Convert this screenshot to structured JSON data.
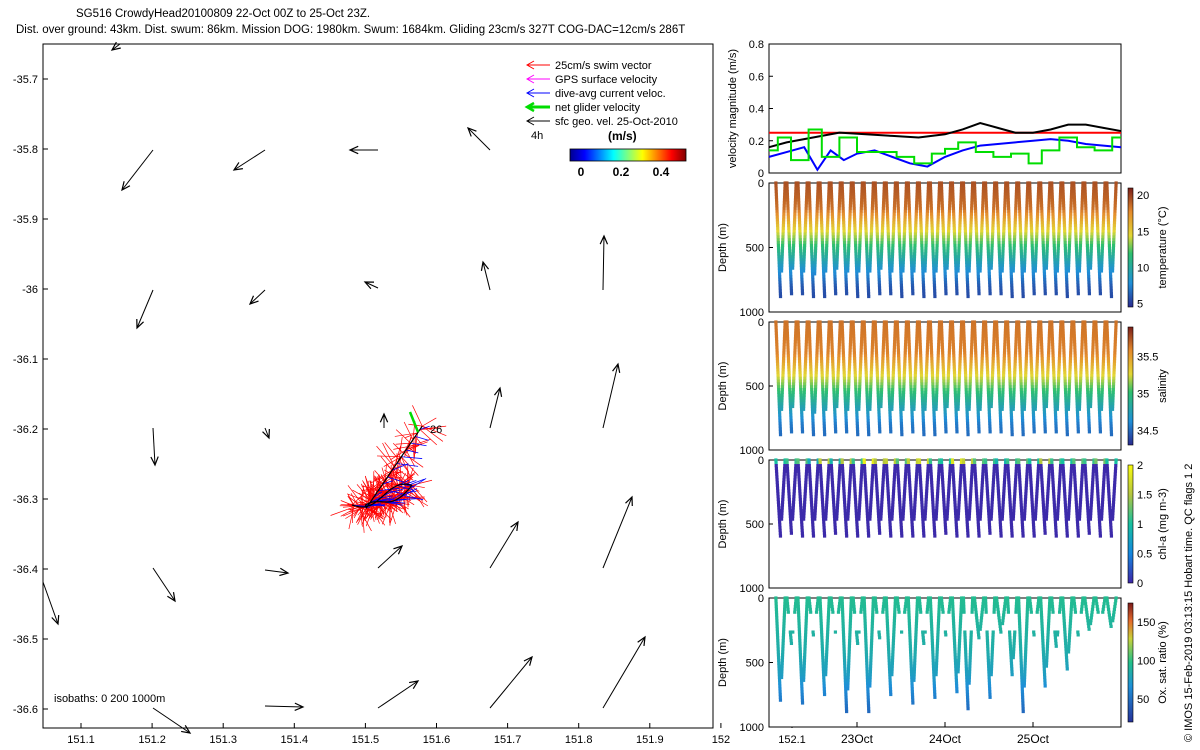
{
  "header": {
    "line1": "SG516 CrowdyHead20100809 22-Oct 00Z to 25-Oct 23Z.",
    "line2": "Dist. over ground: 43km. Dist. swum: 86km. Mission DOG: 1980km. Swum: 1684km. Gliding 23cm/s 327T COG-DAC=12cm/s 286T"
  },
  "map": {
    "lon_ticks": [
      "151.1",
      "151.2",
      "151.3",
      "151.4",
      "151.5",
      "151.6",
      "151.7",
      "151.8",
      "151.9",
      "152",
      "152.1"
    ],
    "lat_ticks": [
      "-35.7",
      "-35.8",
      "-35.9",
      "-36",
      "-36.1",
      "-36.2",
      "-36.3",
      "-36.4",
      "-36.5",
      "-36.6"
    ],
    "legend": [
      {
        "label": "25cm/s swim vector",
        "color": "#ff0000"
      },
      {
        "label": "GPS surface velocity",
        "color": "#ff00ff"
      },
      {
        "label": "dive-avg current veloc.",
        "color": "#0000ff"
      },
      {
        "label": "net glider velocity",
        "color": "#00dd00"
      },
      {
        "label": "sfc geo. vel. 25-Oct-2010",
        "color": "#000000"
      }
    ],
    "time_step_label": "4h",
    "colorbar_title": "(m/s)",
    "colorbar_ticks": [
      "0",
      "0.2",
      "0.4"
    ],
    "track_label": "26",
    "isobaths_label": "isobaths: 0   200   1000m"
  },
  "chart_data": [
    {
      "type": "line",
      "title": "",
      "xlabel": "",
      "ylabel": "velocity magnitude (m/s)",
      "ylim": [
        0,
        0.8
      ],
      "y_ticks": [
        "0",
        "0.2",
        "0.4",
        "0.6",
        "0.8"
      ],
      "x_range_days": [
        22.0,
        26.0
      ],
      "series": [
        {
          "name": "",
          "color": "#ff0000",
          "x": [
            22.0,
            26.0
          ],
          "values": [
            0.25,
            0.25
          ]
        },
        {
          "name": "",
          "color": "#000000",
          "x": [
            22.0,
            22.2,
            22.5,
            22.8,
            23.1,
            23.4,
            23.7,
            24.0,
            24.2,
            24.4,
            24.6,
            24.8,
            25.0,
            25.2,
            25.4,
            25.6,
            25.8,
            26.0
          ],
          "values": [
            0.16,
            0.19,
            0.22,
            0.25,
            0.24,
            0.23,
            0.22,
            0.24,
            0.27,
            0.31,
            0.28,
            0.25,
            0.25,
            0.27,
            0.3,
            0.3,
            0.28,
            0.26
          ]
        },
        {
          "name": "",
          "color": "#0000ff",
          "x": [
            22.0,
            22.2,
            22.4,
            22.55,
            22.7,
            22.85,
            23.0,
            23.2,
            23.4,
            23.6,
            23.8,
            24.0,
            24.2,
            24.4,
            24.6,
            24.8,
            25.0,
            25.2,
            25.4,
            25.6,
            25.8,
            26.0
          ],
          "values": [
            0.1,
            0.13,
            0.16,
            0.02,
            0.14,
            0.08,
            0.12,
            0.14,
            0.1,
            0.06,
            0.04,
            0.1,
            0.14,
            0.17,
            0.18,
            0.19,
            0.2,
            0.21,
            0.2,
            0.18,
            0.17,
            0.16
          ]
        },
        {
          "name": "",
          "color": "#00dd00",
          "step": true,
          "x": [
            22.0,
            22.1,
            22.25,
            22.45,
            22.6,
            22.8,
            23.0,
            23.2,
            23.45,
            23.65,
            23.85,
            24.0,
            24.15,
            24.35,
            24.55,
            24.75,
            24.95,
            25.1,
            25.3,
            25.5,
            25.7,
            25.9,
            26.0
          ],
          "values": [
            0.14,
            0.22,
            0.08,
            0.27,
            0.1,
            0.22,
            0.13,
            0.13,
            0.1,
            0.06,
            0.12,
            0.15,
            0.19,
            0.13,
            0.1,
            0.12,
            0.06,
            0.14,
            0.22,
            0.16,
            0.14,
            0.22,
            0.22
          ]
        }
      ]
    },
    {
      "type": "scatter",
      "title": "",
      "xlabel": "",
      "ylabel": "Depth (m)",
      "colorbar_label": "temperature (°C)",
      "colorbar_ticks": [
        "5",
        "10",
        "15",
        "20"
      ],
      "clim": [
        4.5,
        21
      ],
      "ylim": [
        1000,
        0
      ],
      "y_ticks": [
        "0",
        "500",
        "1000"
      ],
      "dives": 31,
      "max_depth_m": [
        880,
        860,
        870,
        900,
        880,
        860,
        870,
        880,
        890,
        860,
        870,
        880,
        870,
        880,
        890,
        860,
        870,
        880,
        870,
        860,
        870,
        880,
        890,
        870,
        860,
        870,
        880,
        870,
        860,
        870,
        880
      ],
      "profile_values": {
        "depth_m": [
          0,
          200,
          350,
          500,
          650,
          800,
          1000
        ],
        "values": [
          19.5,
          18.5,
          15,
          11.5,
          8.5,
          6,
          5
        ]
      }
    },
    {
      "type": "scatter",
      "title": "",
      "xlabel": "",
      "ylabel": "Depth (m)",
      "colorbar_label": "salinity",
      "colorbar_ticks": [
        "34.5",
        "35",
        "35.5"
      ],
      "clim": [
        34.3,
        35.9
      ],
      "ylim": [
        1000,
        0
      ],
      "y_ticks": [
        "0",
        "500",
        "1000"
      ],
      "dives": 31,
      "max_depth_m": [
        880,
        860,
        870,
        900,
        880,
        860,
        870,
        880,
        890,
        860,
        870,
        880,
        870,
        880,
        890,
        860,
        870,
        880,
        870,
        860,
        870,
        880,
        890,
        870,
        860,
        870,
        880,
        870,
        860,
        870,
        880
      ],
      "profile_values": {
        "depth_m": [
          0,
          250,
          400,
          520,
          650,
          800,
          1000
        ],
        "values": [
          35.65,
          35.6,
          35.3,
          35.05,
          34.8,
          34.55,
          34.45
        ]
      }
    },
    {
      "type": "scatter",
      "title": "",
      "xlabel": "",
      "ylabel": "Depth (m)",
      "colorbar_label": "chl-a (mg m-3)",
      "colorbar_ticks": [
        "0",
        "0.5",
        "1",
        "1.5",
        "2"
      ],
      "clim": [
        0,
        2
      ],
      "ylim": [
        1000,
        0
      ],
      "y_ticks": [
        "0",
        "500",
        "1000"
      ],
      "dives": 31,
      "max_depth_m": [
        600,
        590,
        600,
        610,
        600,
        590,
        600,
        600,
        610,
        590,
        600,
        600,
        600,
        600,
        610,
        590,
        600,
        600,
        600,
        590,
        600,
        600,
        610,
        600,
        590,
        600,
        600,
        600,
        590,
        600,
        600
      ],
      "surface_values": [
        1.0,
        1.1,
        1.2,
        0.8,
        1.6,
        0.9,
        1.5,
        1.1,
        1.9,
        1.5,
        1.6,
        1.2,
        1.6,
        1.7,
        1.1,
        1.0,
        1.8,
        1.6,
        1.2,
        1.1,
        0.9,
        1.1,
        1.2,
        1.0,
        1.5,
        1.1,
        1.0,
        1.2,
        1.1,
        1.3,
        1.0
      ]
    },
    {
      "type": "scatter",
      "title": "",
      "xlabel": "",
      "ylabel": "Depth (m)",
      "colorbar_label": "Ox. sat. ratio (%)",
      "colorbar_ticks": [
        "50",
        "100",
        "150"
      ],
      "clim": [
        20,
        175
      ],
      "ylim": [
        1000,
        0
      ],
      "y_ticks": [
        "0",
        "500",
        "1000"
      ],
      "x_tick_labels": [
        "23Oct",
        "24Oct",
        "25Oct"
      ],
      "x_ticks_days": [
        23,
        24,
        25
      ],
      "x_range_days": [
        22.0,
        26.0
      ],
      "dives": 31,
      "max_depth_m": [
        800,
        360,
        820,
        300,
        760,
        280,
        900,
        360,
        880,
        320,
        760,
        280,
        820,
        360,
        780,
        300,
        740,
        860,
        320,
        780,
        280,
        600,
        880,
        300,
        700,
        380,
        560,
        300,
        260,
        220,
        240
      ],
      "profile_values": {
        "depth_m": [
          0,
          200,
          400,
          600,
          800,
          900
        ],
        "values": [
          95,
          90,
          85,
          75,
          55,
          45
        ]
      }
    }
  ],
  "side_text": "© IMOS 15-Feb-2019 03:13:15 Hobart time. QC flags 1  2"
}
